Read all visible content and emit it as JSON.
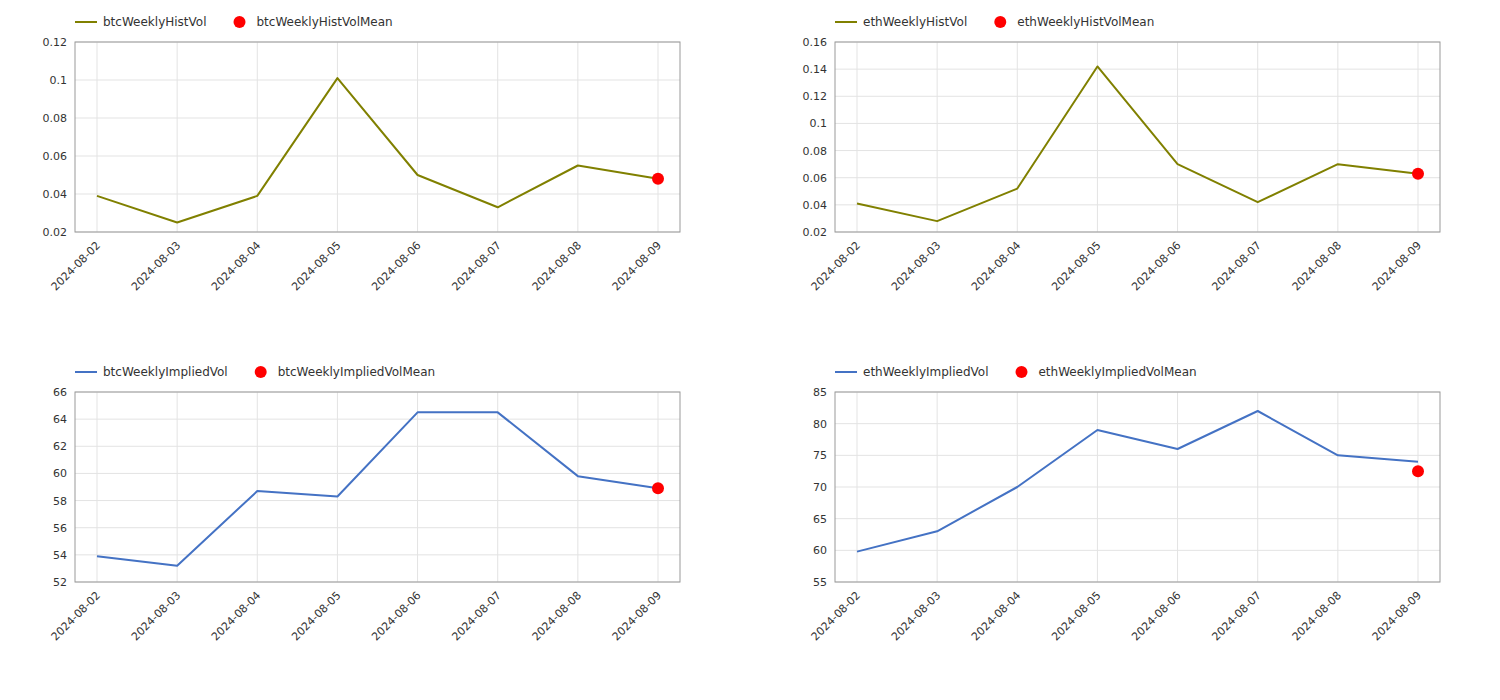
{
  "chart_data": [
    {
      "type": "line",
      "categories": [
        "2024-08-02",
        "2024-08-03",
        "2024-08-04",
        "2024-08-05",
        "2024-08-06",
        "2024-08-07",
        "2024-08-08",
        "2024-08-09"
      ],
      "series": [
        {
          "name": "btcWeeklyHistVol",
          "type": "line",
          "color": "#808000",
          "values": [
            0.039,
            0.025,
            0.039,
            0.101,
            0.05,
            0.033,
            0.055,
            0.048
          ]
        },
        {
          "name": "btcWeeklyHistVolMean",
          "type": "scatter",
          "color": "#ff0000",
          "marker": "circle",
          "values": [
            null,
            null,
            null,
            null,
            null,
            null,
            null,
            0.048
          ]
        }
      ],
      "ylim": [
        0.02,
        0.12
      ],
      "yticks": [
        0.02,
        0.04,
        0.06,
        0.08,
        0.1,
        0.12
      ],
      "grid": true,
      "legend": "upper left"
    },
    {
      "type": "line",
      "categories": [
        "2024-08-02",
        "2024-08-03",
        "2024-08-04",
        "2024-08-05",
        "2024-08-06",
        "2024-08-07",
        "2024-08-08",
        "2024-08-09"
      ],
      "series": [
        {
          "name": "ethWeeklyHistVol",
          "type": "line",
          "color": "#808000",
          "values": [
            0.041,
            0.028,
            0.052,
            0.142,
            0.07,
            0.042,
            0.07,
            0.063
          ]
        },
        {
          "name": "ethWeeklyHistVolMean",
          "type": "scatter",
          "color": "#ff0000",
          "marker": "circle",
          "values": [
            null,
            null,
            null,
            null,
            null,
            null,
            null,
            0.063
          ]
        }
      ],
      "ylim": [
        0.02,
        0.16
      ],
      "yticks": [
        0.02,
        0.04,
        0.06,
        0.08,
        0.1,
        0.12,
        0.14,
        0.16
      ],
      "grid": true,
      "legend": "upper left"
    },
    {
      "type": "line",
      "categories": [
        "2024-08-02",
        "2024-08-03",
        "2024-08-04",
        "2024-08-05",
        "2024-08-06",
        "2024-08-07",
        "2024-08-08",
        "2024-08-09"
      ],
      "series": [
        {
          "name": "btcWeeklyImpliedVol",
          "type": "line",
          "color": "#4472c4",
          "values": [
            53.9,
            53.2,
            58.7,
            58.3,
            64.5,
            64.5,
            59.8,
            58.9
          ]
        },
        {
          "name": "btcWeeklyImpliedVolMean",
          "type": "scatter",
          "color": "#ff0000",
          "marker": "circle",
          "values": [
            null,
            null,
            null,
            null,
            null,
            null,
            null,
            58.9
          ]
        }
      ],
      "ylim": [
        52,
        66
      ],
      "yticks": [
        52,
        54,
        56,
        58,
        60,
        62,
        64,
        66
      ],
      "grid": true,
      "legend": "upper left"
    },
    {
      "type": "line",
      "categories": [
        "2024-08-02",
        "2024-08-03",
        "2024-08-04",
        "2024-08-05",
        "2024-08-06",
        "2024-08-07",
        "2024-08-08",
        "2024-08-09"
      ],
      "series": [
        {
          "name": "ethWeeklyImpliedVol",
          "type": "line",
          "color": "#4472c4",
          "values": [
            59.8,
            63.0,
            70.0,
            79.0,
            76.0,
            82.0,
            75.0,
            74.0
          ]
        },
        {
          "name": "ethWeeklyImpliedVolMean",
          "type": "scatter",
          "color": "#ff0000",
          "marker": "circle",
          "values": [
            null,
            null,
            null,
            null,
            null,
            null,
            null,
            72.5
          ]
        }
      ],
      "ylim": [
        55,
        85
      ],
      "yticks": [
        55,
        60,
        65,
        70,
        75,
        80,
        85
      ],
      "grid": true,
      "legend": "upper left"
    }
  ]
}
